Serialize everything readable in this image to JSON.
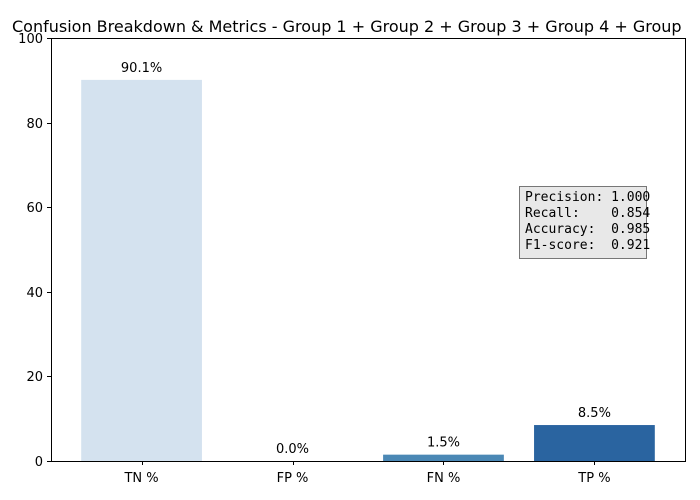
{
  "chart_data": {
    "type": "bar",
    "title": "Confusion Breakdown & Metrics - Group 1 + Group 2 + Group 3 + Group 4 + Group",
    "xlabel": "",
    "ylabel": "",
    "categories": [
      "TN %",
      "FP %",
      "FN %",
      "TP %"
    ],
    "values": [
      90.1,
      0.0,
      1.5,
      8.5
    ],
    "data_labels": [
      "90.1%",
      "0.0%",
      "1.5%",
      "8.5%"
    ],
    "colors": [
      "#d4e2ef",
      "#a9c8e0",
      "#4b88b5",
      "#2a64a0"
    ],
    "ylim": [
      0,
      100
    ],
    "yticks": [
      0,
      20,
      40,
      60,
      80,
      100
    ],
    "grid": false,
    "legend": "none",
    "metrics_box": {
      "lines": [
        "Precision: 1.000",
        "Recall:    0.854",
        "Accuracy:  0.985",
        "F1-score:  0.921"
      ],
      "placement": "center-right"
    }
  }
}
